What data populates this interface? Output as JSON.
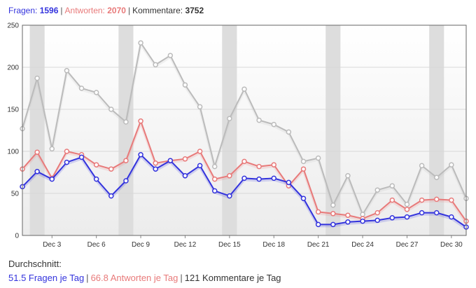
{
  "summary": {
    "questions_label": "Fragen:",
    "questions_value": "1596",
    "answers_label": "Antworten:",
    "answers_value": "2070",
    "comments_label": "Kommentare:",
    "comments_value": "3752"
  },
  "colors": {
    "questions": "#3333dd",
    "answers": "#e87a7a",
    "comments": "#bbbbbb",
    "weekend_band": "#dddddd"
  },
  "average": {
    "title": "Durchschnitt:",
    "questions": "51.5 Fragen je Tag",
    "answers": "66.8 Antworten je Tag",
    "comments": "121 Kommentare je Tag"
  },
  "chart_data": {
    "type": "line",
    "ylim": [
      0,
      250
    ],
    "yticks": [
      0,
      50,
      100,
      150,
      200,
      250
    ],
    "x_tick_labels": [
      "Dec 3",
      "Dec 6",
      "Dec 9",
      "Dec 12",
      "Dec 15",
      "Dec 18",
      "Dec 21",
      "Dec 24",
      "Dec 27",
      "Dec 30"
    ],
    "x_tick_days": [
      3,
      6,
      9,
      12,
      15,
      18,
      21,
      24,
      27,
      30
    ],
    "x": [
      1,
      2,
      3,
      4,
      5,
      6,
      7,
      8,
      9,
      10,
      11,
      12,
      13,
      14,
      15,
      16,
      17,
      18,
      19,
      20,
      21,
      22,
      23,
      24,
      25,
      26,
      27,
      28,
      29,
      30,
      31
    ],
    "weekend_days": [
      [
        2
      ],
      [
        8
      ],
      [
        15
      ],
      [
        22
      ],
      [
        29
      ]
    ],
    "series": [
      {
        "key": "comments",
        "values": [
          127,
          187,
          103,
          196,
          175,
          170,
          150,
          135,
          229,
          203,
          214,
          179,
          153,
          82,
          139,
          174,
          137,
          132,
          123,
          88,
          92,
          36,
          71,
          25,
          54,
          59,
          37,
          83,
          69,
          84,
          44
        ]
      },
      {
        "key": "answers",
        "values": [
          79,
          99,
          68,
          100,
          96,
          84,
          79,
          89,
          136,
          86,
          89,
          91,
          100,
          67,
          71,
          88,
          82,
          84,
          59,
          79,
          28,
          26,
          24,
          20,
          27,
          42,
          31,
          42,
          43,
          42,
          17
        ]
      },
      {
        "key": "questions",
        "values": [
          58,
          76,
          67,
          87,
          93,
          67,
          47,
          65,
          96,
          79,
          89,
          71,
          83,
          53,
          47,
          68,
          67,
          68,
          63,
          44,
          13,
          13,
          16,
          17,
          18,
          21,
          22,
          27,
          27,
          22,
          10
        ]
      }
    ]
  }
}
